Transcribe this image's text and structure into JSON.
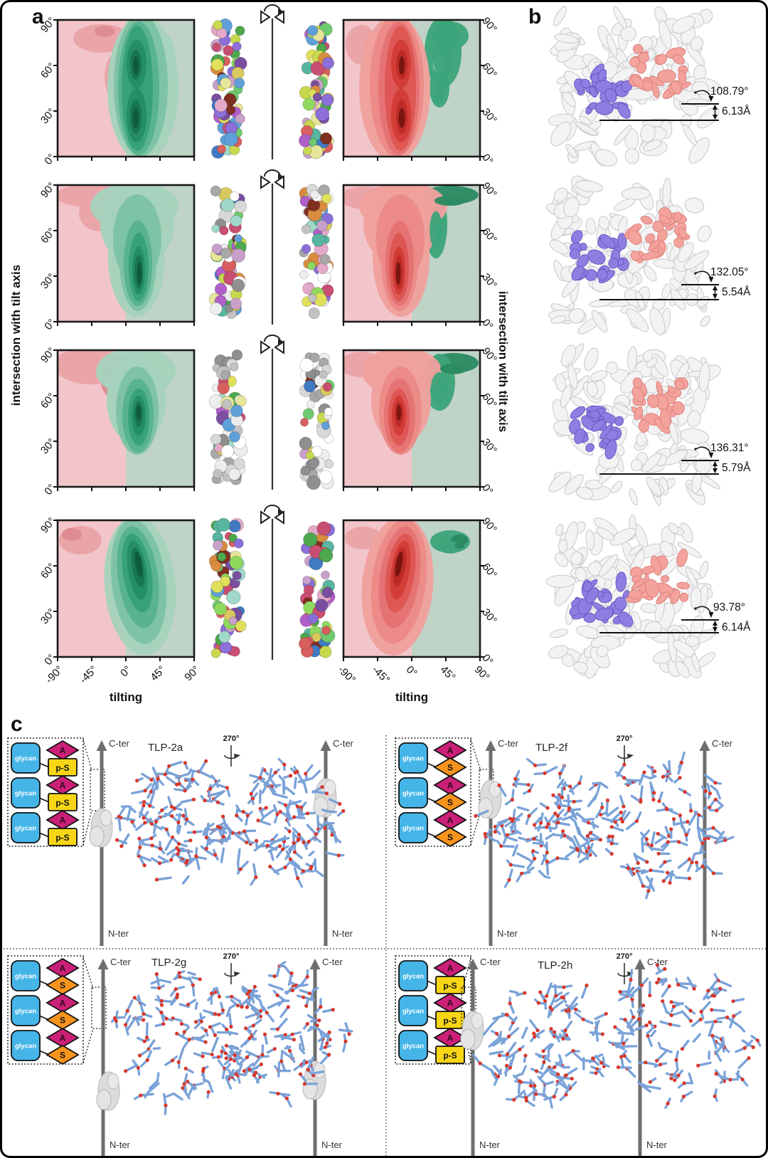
{
  "colors": {
    "pink_bg": "#f2c5ca",
    "sage_bg": "#c0d3c7",
    "green_core": "#0f5a3d",
    "red_core": "#771511",
    "purple_subunit": "#8f7ee2",
    "salmon_subunit": "#f4a29c",
    "glycan_blue": "#45b5e8",
    "diamond_magenta": "#cb2077",
    "diamond_orange": "#f7941e",
    "square_yellow": "#f8d616",
    "stick_blue": "#7aa2d8",
    "stick_red": "#d8372b",
    "arrow_gray": "#6e6e6e"
  },
  "panel_a": {
    "label": "a",
    "left_axis_label": "intersection with tilt axis",
    "right_axis_label": "intersection with tilt axis",
    "x_axis_label_left": "tilting",
    "x_axis_label_right": "tilting",
    "y_ticks": [
      "90°",
      "60°",
      "30°",
      "0°"
    ],
    "x_ticks": [
      "-90°",
      "-45°",
      "0°",
      "45°",
      "90°"
    ]
  },
  "panel_b": {
    "label": "b",
    "maps": [
      {
        "twist": "108.79°",
        "rise": "6.13Å"
      },
      {
        "twist": "132.05°",
        "rise": "5.54Å"
      },
      {
        "twist": "136.31°",
        "rise": "5.79Å"
      },
      {
        "twist": "93.78°",
        "rise": "6.14Å"
      }
    ]
  },
  "panel_c": {
    "label": "c",
    "rotation_label": "270°",
    "c_ter_label": "C-ter",
    "n_ter_label": "N-ter",
    "glycan_label": "glycan",
    "quadrants": [
      {
        "title": "TLP-2a",
        "repeat_units": [
          [
            "A",
            "p-S"
          ],
          [
            "A",
            "p-S"
          ],
          [
            "A",
            "p-S"
          ]
        ],
        "unit_types": [
          "diamond",
          "square"
        ]
      },
      {
        "title": "TLP-2f",
        "repeat_units": [
          [
            "A",
            "S"
          ],
          [
            "A",
            "S"
          ],
          [
            "A",
            "S"
          ]
        ],
        "unit_types": [
          "diamond",
          "diamond"
        ]
      },
      {
        "title": "TLP-2g",
        "repeat_units": [
          [
            "A",
            "S"
          ],
          [
            "A",
            "S"
          ],
          [
            "A",
            "S"
          ]
        ],
        "unit_types": [
          "diamond",
          "diamond"
        ]
      },
      {
        "title": "TLP-2h",
        "repeat_units": [
          [
            "A",
            "p-S"
          ],
          [
            "A",
            "p-S"
          ],
          [
            "A",
            "p-S"
          ]
        ],
        "unit_types": [
          "diamond",
          "square"
        ]
      }
    ]
  }
}
